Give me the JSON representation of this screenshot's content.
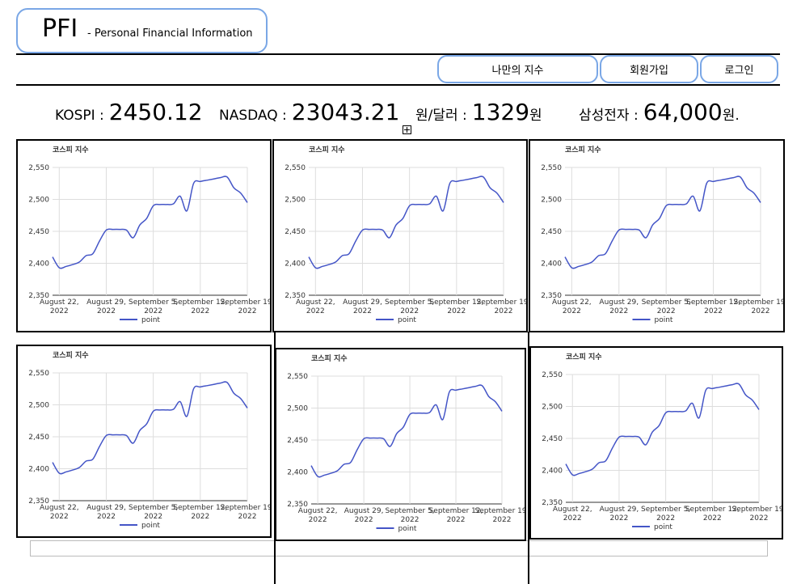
{
  "header": {
    "title": "PFI",
    "subtitle": "- Personal Financial Information"
  },
  "nav": [
    "나만의 지수",
    "회원가입",
    "로그인"
  ],
  "ticker": [
    {
      "label": "KOSPI :",
      "value": "2450.12"
    },
    {
      "label": "NASDAQ :",
      "value": "23043.21"
    },
    {
      "label": "원/달러 :",
      "value": "1329",
      "unit": "원"
    },
    {
      "label": "삼성전자 :",
      "value": "64,000",
      "unit": "원."
    }
  ],
  "chart_data": [
    {
      "type": "line",
      "title": "코스피 지수",
      "x": [
        "2022-08-21",
        "2022-08-22",
        "2022-08-23",
        "2022-08-24",
        "2022-08-25",
        "2022-08-26",
        "2022-08-27",
        "2022-08-28",
        "2022-08-29",
        "2022-08-30",
        "2022-08-31",
        "2022-09-01",
        "2022-09-02",
        "2022-09-03",
        "2022-09-04",
        "2022-09-05",
        "2022-09-06",
        "2022-09-07",
        "2022-09-08",
        "2022-09-09",
        "2022-09-10",
        "2022-09-11",
        "2022-09-12",
        "2022-09-13",
        "2022-09-14",
        "2022-09-15",
        "2022-09-16",
        "2022-09-17",
        "2022-09-18",
        "2022-09-19"
      ],
      "series": [
        {
          "name": "point",
          "color": "#4455c7",
          "values": [
            2410,
            2393,
            2395,
            2398,
            2402,
            2412,
            2415,
            2435,
            2452,
            2453,
            2453,
            2452,
            2440,
            2460,
            2470,
            2490,
            2492,
            2492,
            2493,
            2505,
            2482,
            2525,
            2528,
            2530,
            2532,
            2534,
            2535,
            2518,
            2510,
            2495
          ]
        }
      ],
      "xlim": [
        "2022-08-21",
        "2022-09-19"
      ],
      "xticks": [
        {
          "value": "2022-08-22",
          "label": "August 22, 2022"
        },
        {
          "value": "2022-08-29",
          "label": "August 29, 2022"
        },
        {
          "value": "2022-09-05",
          "label": "September 5, 2022"
        },
        {
          "value": "2022-09-12",
          "label": "September 12, 2022"
        },
        {
          "value": "2022-09-19",
          "label": "September 19, 2022"
        }
      ],
      "ylim": [
        2350,
        2550
      ],
      "yticks": [
        {
          "value": 2350,
          "label": "2,350"
        },
        {
          "value": 2400,
          "label": "2,400"
        },
        {
          "value": 2450,
          "label": "2,450"
        },
        {
          "value": 2500,
          "label": "2,500"
        },
        {
          "value": 2550,
          "label": "2,550"
        }
      ],
      "grid": true,
      "legend": "bottom"
    },
    {
      "type": "line",
      "title": "코스피 지수",
      "x": [
        "2022-08-21",
        "2022-08-22",
        "2022-08-23",
        "2022-08-24",
        "2022-08-25",
        "2022-08-26",
        "2022-08-27",
        "2022-08-28",
        "2022-08-29",
        "2022-08-30",
        "2022-08-31",
        "2022-09-01",
        "2022-09-02",
        "2022-09-03",
        "2022-09-04",
        "2022-09-05",
        "2022-09-06",
        "2022-09-07",
        "2022-09-08",
        "2022-09-09",
        "2022-09-10",
        "2022-09-11",
        "2022-09-12",
        "2022-09-13",
        "2022-09-14",
        "2022-09-15",
        "2022-09-16",
        "2022-09-17",
        "2022-09-18",
        "2022-09-19"
      ],
      "series": [
        {
          "name": "point",
          "color": "#4455c7",
          "values": [
            2410,
            2393,
            2395,
            2398,
            2402,
            2412,
            2415,
            2435,
            2452,
            2453,
            2453,
            2452,
            2440,
            2460,
            2470,
            2490,
            2492,
            2492,
            2493,
            2505,
            2482,
            2525,
            2528,
            2530,
            2532,
            2534,
            2535,
            2518,
            2510,
            2495
          ]
        }
      ],
      "xlim": [
        "2022-08-21",
        "2022-09-19"
      ],
      "xticks": [
        {
          "value": "2022-08-22",
          "label": "August 22, 2022"
        },
        {
          "value": "2022-08-29",
          "label": "August 29, 2022"
        },
        {
          "value": "2022-09-05",
          "label": "September 5, 2022"
        },
        {
          "value": "2022-09-12",
          "label": "September 12, 2022"
        },
        {
          "value": "2022-09-19",
          "label": "September 19, 2022"
        }
      ],
      "ylim": [
        2350,
        2550
      ],
      "yticks": [
        {
          "value": 2350,
          "label": "2,350"
        },
        {
          "value": 2400,
          "label": "2,400"
        },
        {
          "value": 2450,
          "label": "2,450"
        },
        {
          "value": 2500,
          "label": "2,500"
        },
        {
          "value": 2550,
          "label": "2,550"
        }
      ],
      "grid": true,
      "legend": "bottom"
    },
    {
      "type": "line",
      "title": "코스피 지수",
      "x": [
        "2022-08-21",
        "2022-08-22",
        "2022-08-23",
        "2022-08-24",
        "2022-08-25",
        "2022-08-26",
        "2022-08-27",
        "2022-08-28",
        "2022-08-29",
        "2022-08-30",
        "2022-08-31",
        "2022-09-01",
        "2022-09-02",
        "2022-09-03",
        "2022-09-04",
        "2022-09-05",
        "2022-09-06",
        "2022-09-07",
        "2022-09-08",
        "2022-09-09",
        "2022-09-10",
        "2022-09-11",
        "2022-09-12",
        "2022-09-13",
        "2022-09-14",
        "2022-09-15",
        "2022-09-16",
        "2022-09-17",
        "2022-09-18",
        "2022-09-19"
      ],
      "series": [
        {
          "name": "point",
          "color": "#4455c7",
          "values": [
            2410,
            2393,
            2395,
            2398,
            2402,
            2412,
            2415,
            2435,
            2452,
            2453,
            2453,
            2452,
            2440,
            2460,
            2470,
            2490,
            2492,
            2492,
            2493,
            2505,
            2482,
            2525,
            2528,
            2530,
            2532,
            2534,
            2535,
            2518,
            2510,
            2495
          ]
        }
      ],
      "xlim": [
        "2022-08-21",
        "2022-09-19"
      ],
      "xticks": [
        {
          "value": "2022-08-22",
          "label": "August 22, 2022"
        },
        {
          "value": "2022-08-29",
          "label": "August 29, 2022"
        },
        {
          "value": "2022-09-05",
          "label": "September 5, 2022"
        },
        {
          "value": "2022-09-12",
          "label": "September 12, 2022"
        },
        {
          "value": "2022-09-19",
          "label": "September 19, 2022"
        }
      ],
      "ylim": [
        2350,
        2550
      ],
      "yticks": [
        {
          "value": 2350,
          "label": "2,350"
        },
        {
          "value": 2400,
          "label": "2,400"
        },
        {
          "value": 2450,
          "label": "2,450"
        },
        {
          "value": 2500,
          "label": "2,500"
        },
        {
          "value": 2550,
          "label": "2,550"
        }
      ],
      "grid": true,
      "legend": "bottom"
    },
    {
      "type": "line",
      "title": "코스피 지수",
      "x": [
        "2022-08-21",
        "2022-08-22",
        "2022-08-23",
        "2022-08-24",
        "2022-08-25",
        "2022-08-26",
        "2022-08-27",
        "2022-08-28",
        "2022-08-29",
        "2022-08-30",
        "2022-08-31",
        "2022-09-01",
        "2022-09-02",
        "2022-09-03",
        "2022-09-04",
        "2022-09-05",
        "2022-09-06",
        "2022-09-07",
        "2022-09-08",
        "2022-09-09",
        "2022-09-10",
        "2022-09-11",
        "2022-09-12",
        "2022-09-13",
        "2022-09-14",
        "2022-09-15",
        "2022-09-16",
        "2022-09-17",
        "2022-09-18",
        "2022-09-19"
      ],
      "series": [
        {
          "name": "point",
          "color": "#4455c7",
          "values": [
            2410,
            2393,
            2395,
            2398,
            2402,
            2412,
            2415,
            2435,
            2452,
            2453,
            2453,
            2452,
            2440,
            2460,
            2470,
            2490,
            2492,
            2492,
            2493,
            2505,
            2482,
            2525,
            2528,
            2530,
            2532,
            2534,
            2535,
            2518,
            2510,
            2495
          ]
        }
      ],
      "xlim": [
        "2022-08-21",
        "2022-09-19"
      ],
      "xticks": [
        {
          "value": "2022-08-22",
          "label": "August 22, 2022"
        },
        {
          "value": "2022-08-29",
          "label": "August 29, 2022"
        },
        {
          "value": "2022-09-05",
          "label": "September 5, 2022"
        },
        {
          "value": "2022-09-12",
          "label": "September 12, 2022"
        },
        {
          "value": "2022-09-19",
          "label": "September 19, 2022"
        }
      ],
      "ylim": [
        2350,
        2550
      ],
      "yticks": [
        {
          "value": 2350,
          "label": "2,350"
        },
        {
          "value": 2400,
          "label": "2,400"
        },
        {
          "value": 2450,
          "label": "2,450"
        },
        {
          "value": 2500,
          "label": "2,500"
        },
        {
          "value": 2550,
          "label": "2,550"
        }
      ],
      "grid": true,
      "legend": "bottom"
    },
    {
      "type": "line",
      "title": "코스피 지수",
      "x": [
        "2022-08-21",
        "2022-08-22",
        "2022-08-23",
        "2022-08-24",
        "2022-08-25",
        "2022-08-26",
        "2022-08-27",
        "2022-08-28",
        "2022-08-29",
        "2022-08-30",
        "2022-08-31",
        "2022-09-01",
        "2022-09-02",
        "2022-09-03",
        "2022-09-04",
        "2022-09-05",
        "2022-09-06",
        "2022-09-07",
        "2022-09-08",
        "2022-09-09",
        "2022-09-10",
        "2022-09-11",
        "2022-09-12",
        "2022-09-13",
        "2022-09-14",
        "2022-09-15",
        "2022-09-16",
        "2022-09-17",
        "2022-09-18",
        "2022-09-19"
      ],
      "series": [
        {
          "name": "point",
          "color": "#4455c7",
          "values": [
            2410,
            2393,
            2395,
            2398,
            2402,
            2412,
            2415,
            2435,
            2452,
            2453,
            2453,
            2452,
            2440,
            2460,
            2470,
            2490,
            2492,
            2492,
            2493,
            2505,
            2482,
            2525,
            2528,
            2530,
            2532,
            2534,
            2535,
            2518,
            2510,
            2495
          ]
        }
      ],
      "xlim": [
        "2022-08-21",
        "2022-09-19"
      ],
      "xticks": [
        {
          "value": "2022-08-22",
          "label": "August 22, 2022"
        },
        {
          "value": "2022-08-29",
          "label": "August 29, 2022"
        },
        {
          "value": "2022-09-05",
          "label": "September 5, 2022"
        },
        {
          "value": "2022-09-12",
          "label": "September 12, 2022"
        },
        {
          "value": "2022-09-19",
          "label": "September 19, 2022"
        }
      ],
      "ylim": [
        2350,
        2550
      ],
      "yticks": [
        {
          "value": 2350,
          "label": "2,350"
        },
        {
          "value": 2400,
          "label": "2,400"
        },
        {
          "value": 2450,
          "label": "2,450"
        },
        {
          "value": 2500,
          "label": "2,500"
        },
        {
          "value": 2550,
          "label": "2,550"
        }
      ],
      "grid": true,
      "legend": "bottom"
    },
    {
      "type": "line",
      "title": "코스피 지수",
      "x": [
        "2022-08-21",
        "2022-08-22",
        "2022-08-23",
        "2022-08-24",
        "2022-08-25",
        "2022-08-26",
        "2022-08-27",
        "2022-08-28",
        "2022-08-29",
        "2022-08-30",
        "2022-08-31",
        "2022-09-01",
        "2022-09-02",
        "2022-09-03",
        "2022-09-04",
        "2022-09-05",
        "2022-09-06",
        "2022-09-07",
        "2022-09-08",
        "2022-09-09",
        "2022-09-10",
        "2022-09-11",
        "2022-09-12",
        "2022-09-13",
        "2022-09-14",
        "2022-09-15",
        "2022-09-16",
        "2022-09-17",
        "2022-09-18",
        "2022-09-19"
      ],
      "series": [
        {
          "name": "point",
          "color": "#4455c7",
          "values": [
            2410,
            2393,
            2395,
            2398,
            2402,
            2412,
            2415,
            2435,
            2452,
            2453,
            2453,
            2452,
            2440,
            2460,
            2470,
            2490,
            2492,
            2492,
            2493,
            2505,
            2482,
            2525,
            2528,
            2530,
            2532,
            2534,
            2535,
            2518,
            2510,
            2495
          ]
        }
      ],
      "xlim": [
        "2022-08-21",
        "2022-09-19"
      ],
      "xticks": [
        {
          "value": "2022-08-22",
          "label": "August 22, 2022"
        },
        {
          "value": "2022-08-29",
          "label": "August 29, 2022"
        },
        {
          "value": "2022-09-05",
          "label": "September 5, 2022"
        },
        {
          "value": "2022-09-12",
          "label": "September 12, 2022"
        },
        {
          "value": "2022-09-19",
          "label": "September 19, 2022"
        }
      ],
      "ylim": [
        2350,
        2550
      ],
      "yticks": [
        {
          "value": 2350,
          "label": "2,350"
        },
        {
          "value": 2400,
          "label": "2,400"
        },
        {
          "value": 2450,
          "label": "2,450"
        },
        {
          "value": 2500,
          "label": "2,500"
        },
        {
          "value": 2550,
          "label": "2,550"
        }
      ],
      "grid": true,
      "legend": "bottom"
    }
  ]
}
